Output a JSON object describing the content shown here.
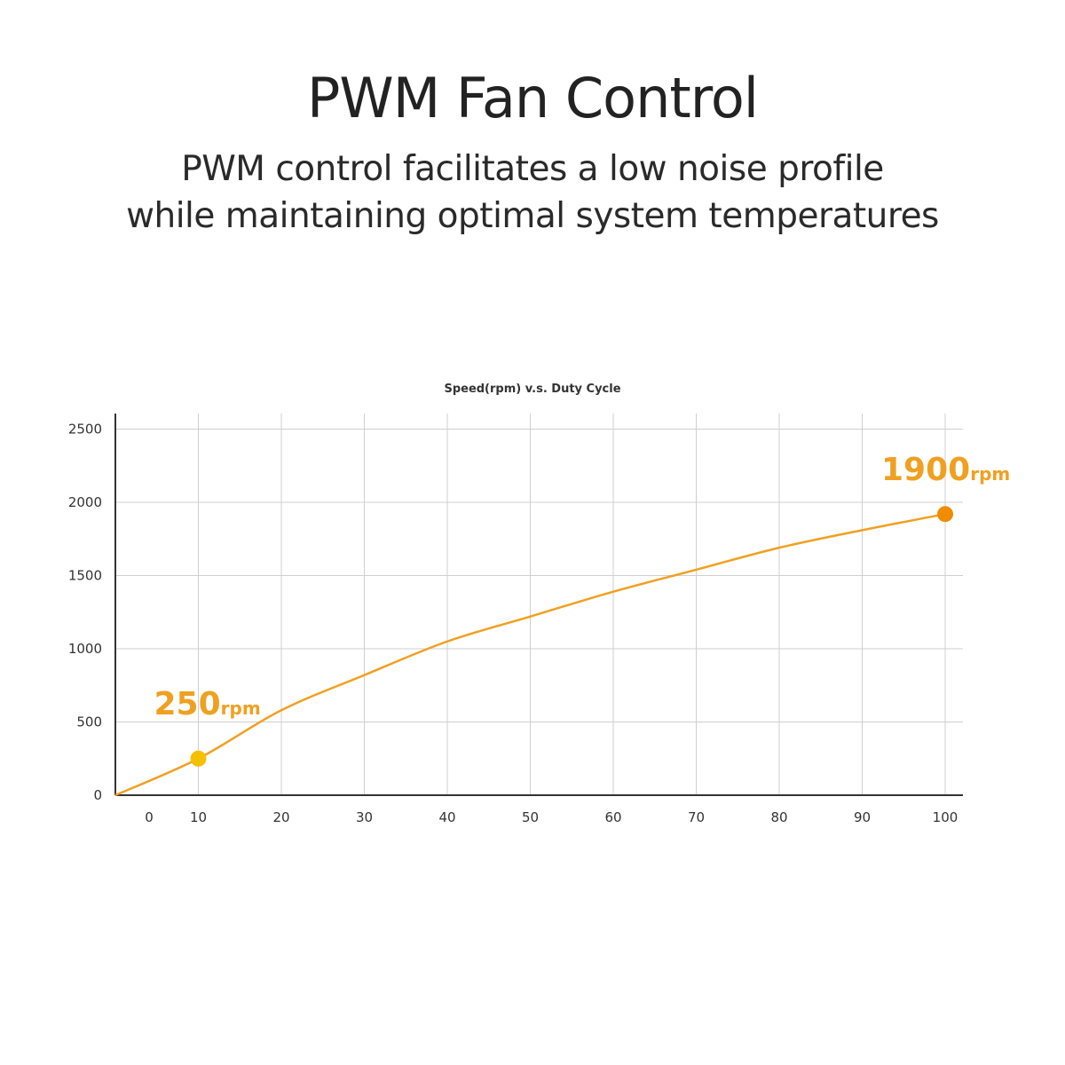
{
  "header": {
    "title": "PWM Fan Control",
    "subtitle_line1": "PWM control facilitates a low noise profile",
    "subtitle_line2": "while maintaining optimal system temperatures"
  },
  "colors": {
    "curve": "#f0a020",
    "callout": "#f0a020",
    "low_point": "#f5c000",
    "high_point": "#f08c00"
  },
  "chart_data": {
    "type": "line",
    "title": "Speed(rpm) v.s. Duty Cycle",
    "xlabel": "",
    "ylabel": "",
    "x_ticks": [
      0,
      10,
      20,
      30,
      40,
      50,
      60,
      70,
      80,
      90,
      100
    ],
    "y_ticks": [
      0,
      500,
      1000,
      1500,
      2000,
      2500
    ],
    "xlim": [
      0,
      100
    ],
    "ylim": [
      0,
      2500
    ],
    "grid": true,
    "series": [
      {
        "x": [
          0,
          10,
          20,
          30,
          40,
          50,
          60,
          70,
          80,
          90,
          100
        ],
        "y": [
          0,
          250,
          580,
          820,
          1050,
          1220,
          1390,
          1540,
          1690,
          1810,
          1920
        ]
      }
    ],
    "annotations": [
      {
        "x": 10,
        "y": 250,
        "value": "250",
        "unit": "rpm"
      },
      {
        "x": 100,
        "y": 1920,
        "value": "1900",
        "unit": "rpm"
      }
    ]
  }
}
